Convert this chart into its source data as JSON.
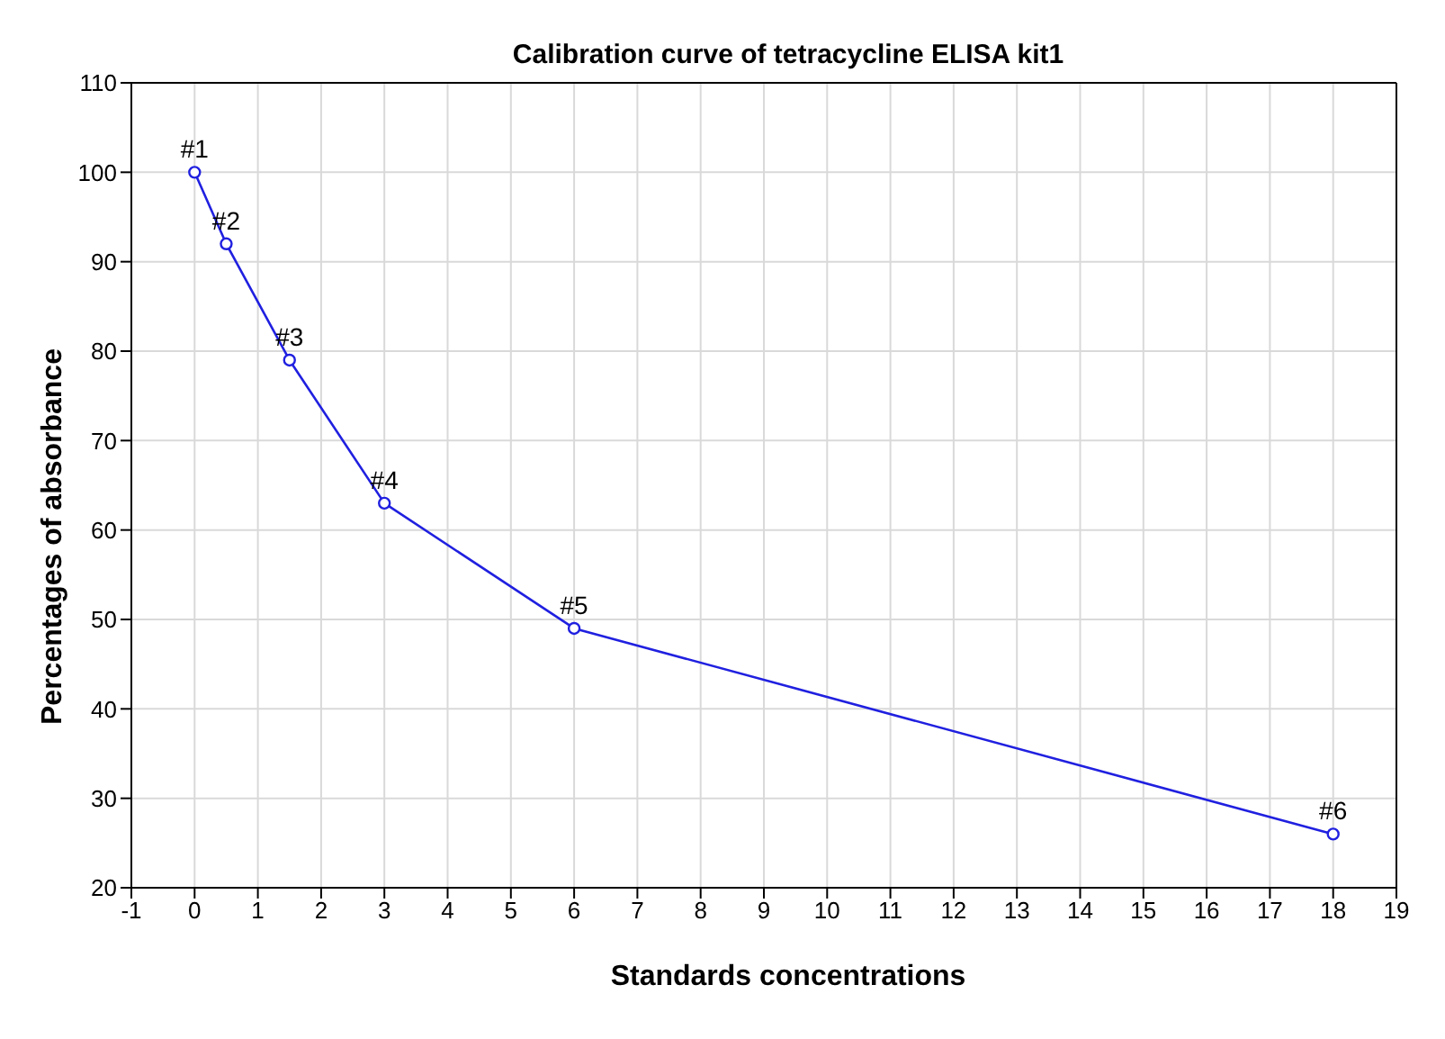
{
  "chart_data": {
    "type": "line",
    "title": "Calibration curve of tetracycline ELISA kit1",
    "xlabel": "Standards concentrations",
    "ylabel": "Percentages of absorbance",
    "x": [
      0,
      0.5,
      1.5,
      3,
      6,
      18
    ],
    "series": [
      {
        "color": "#2020e0",
        "values": [
          100,
          92,
          79,
          63,
          49,
          26
        ]
      }
    ],
    "xlim": [
      -1,
      19
    ],
    "xticks": [
      -1,
      0,
      1,
      2,
      3,
      4,
      5,
      6,
      7,
      8,
      9,
      10,
      11,
      12,
      13,
      14,
      15,
      16,
      17,
      18,
      19
    ],
    "ylim": [
      20,
      110
    ],
    "yticks": [
      20,
      30,
      40,
      50,
      60,
      70,
      80,
      90,
      100,
      110
    ],
    "grid": true,
    "legend": false,
    "marker": "circle",
    "line_style": "solid",
    "annotations": [
      {
        "text": "#1",
        "x": 0,
        "y": 100
      },
      {
        "text": "#2",
        "x": 0.5,
        "y": 92
      },
      {
        "text": "#3",
        "x": 1.5,
        "y": 79
      },
      {
        "text": "#4",
        "x": 3,
        "y": 63
      },
      {
        "text": "#5",
        "x": 6,
        "y": 49
      },
      {
        "text": "#6",
        "x": 18,
        "y": 26
      }
    ]
  }
}
